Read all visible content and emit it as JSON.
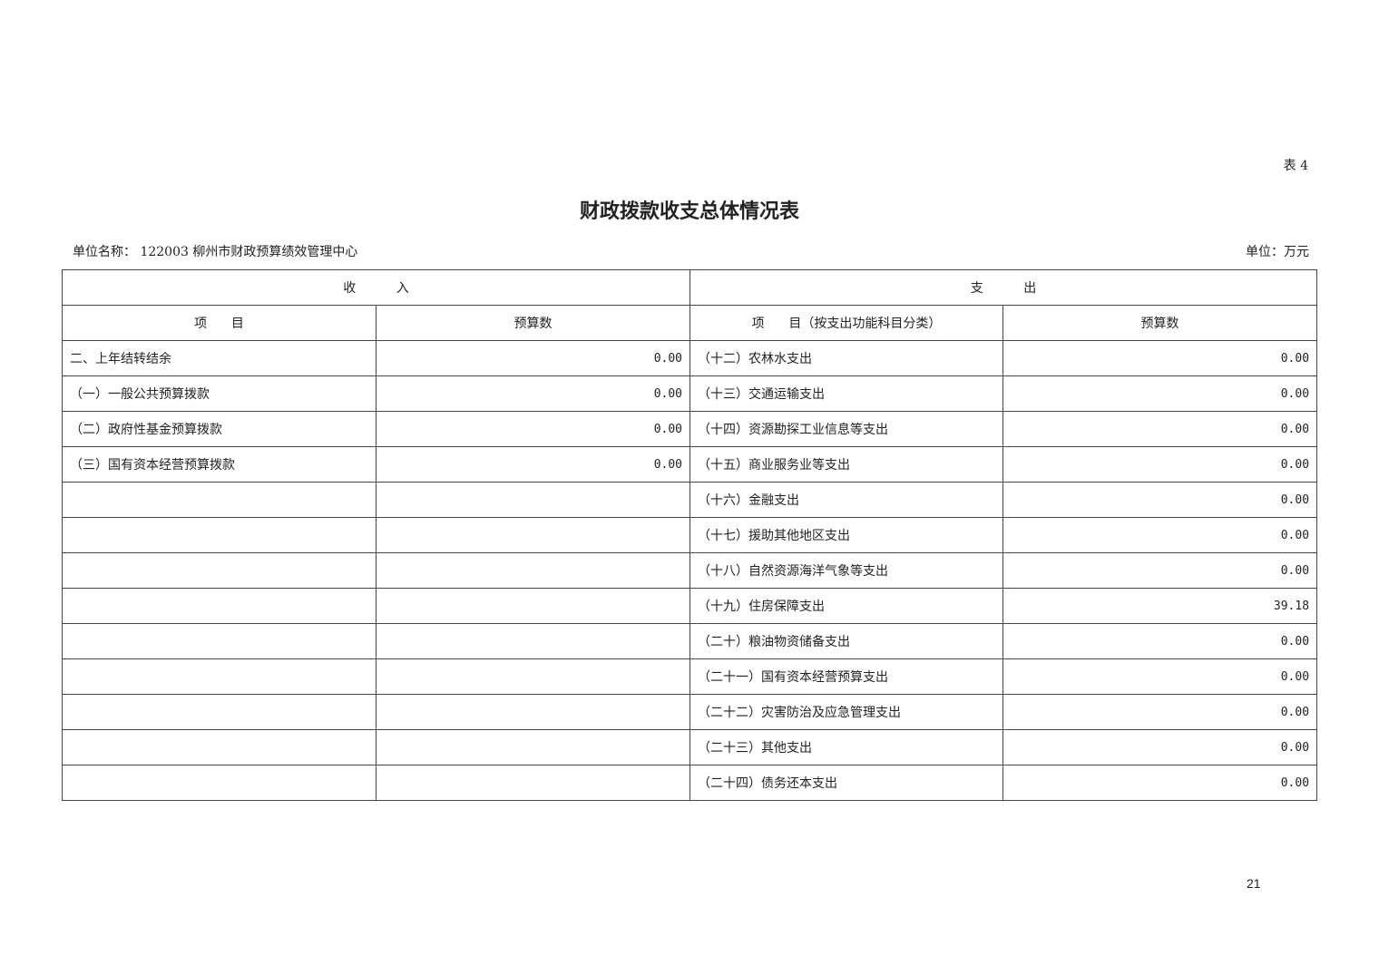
{
  "table_no": "表 4",
  "title": "财政拨款收支总体情况表",
  "unit_name": "单位名称：  122003 柳州市财政预算绩效管理中心",
  "unit": "单位：万元",
  "headers": {
    "income": "收          入",
    "expense": "支          出",
    "income_item": "项      目",
    "income_budget": "预算数",
    "expense_item": "项      目（按支出功能科目分类）",
    "expense_budget": "预算数"
  },
  "rows": [
    {
      "income_item": "二、上年结转结余",
      "income_budget": "0.00",
      "expense_item": "（十二）农林水支出",
      "expense_budget": "0.00"
    },
    {
      "income_item": "（一）一般公共预算拨款",
      "income_budget": "0.00",
      "expense_item": "（十三）交通运输支出",
      "expense_budget": "0.00"
    },
    {
      "income_item": "（二）政府性基金预算拨款",
      "income_budget": "0.00",
      "expense_item": "（十四）资源勘探工业信息等支出",
      "expense_budget": "0.00"
    },
    {
      "income_item": "（三）国有资本经营预算拨款",
      "income_budget": "0.00",
      "expense_item": "（十五）商业服务业等支出",
      "expense_budget": "0.00"
    },
    {
      "income_item": "",
      "income_budget": "",
      "expense_item": "（十六）金融支出",
      "expense_budget": "0.00"
    },
    {
      "income_item": "",
      "income_budget": "",
      "expense_item": "（十七）援助其他地区支出",
      "expense_budget": "0.00"
    },
    {
      "income_item": "",
      "income_budget": "",
      "expense_item": "（十八）自然资源海洋气象等支出",
      "expense_budget": "0.00"
    },
    {
      "income_item": "",
      "income_budget": "",
      "expense_item": "（十九）住房保障支出",
      "expense_budget": "39.18"
    },
    {
      "income_item": "",
      "income_budget": "",
      "expense_item": "（二十）粮油物资储备支出",
      "expense_budget": "0.00"
    },
    {
      "income_item": "",
      "income_budget": "",
      "expense_item": "（二十一）国有资本经营预算支出",
      "expense_budget": "0.00"
    },
    {
      "income_item": "",
      "income_budget": "",
      "expense_item": "（二十二）灾害防治及应急管理支出",
      "expense_budget": "0.00"
    },
    {
      "income_item": "",
      "income_budget": "",
      "expense_item": "（二十三）其他支出",
      "expense_budget": "0.00"
    },
    {
      "income_item": "",
      "income_budget": "",
      "expense_item": "（二十四）债务还本支出",
      "expense_budget": "0.00"
    }
  ],
  "page_number": "21"
}
